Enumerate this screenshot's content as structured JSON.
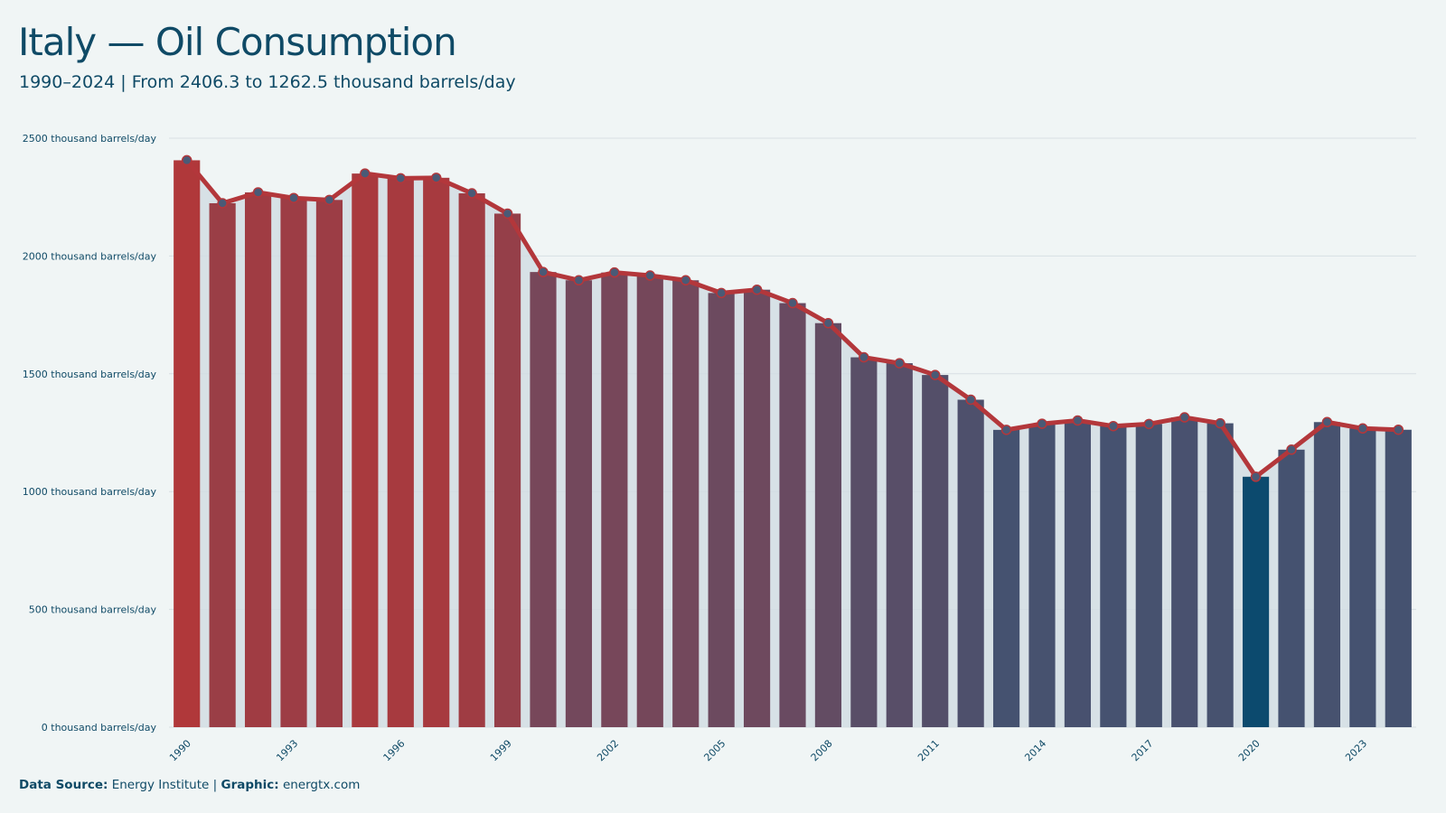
{
  "header": {
    "title": "Italy — Oil Consumption",
    "subtitle": "1990–2024 | From  2406.3  to 1262.5  thousand barrels/day"
  },
  "footer": {
    "source_label": "Data Source:",
    "source_value": "Energy Institute",
    "separator": "|",
    "graphic_label": "Graphic:",
    "graphic_value": "energtx.com"
  },
  "colors": {
    "background": "#f0f5f5",
    "bar_high": "#b0383a",
    "bar_mid": "#6b4a60",
    "bar_low": "#455270",
    "bar_min": "#0c4a6e",
    "line": "#b3373b",
    "marker_fill": "#4a5a76",
    "area": "#d2dde3",
    "grid": "#d7dfe3",
    "text": "#0f4a66"
  },
  "chart_data": {
    "type": "bar",
    "title": "Italy — Oil Consumption",
    "ylabel": "",
    "xlabel": "",
    "ylim": [
      0,
      2500
    ],
    "yticks": [
      0,
      500,
      1000,
      1500,
      2000,
      2500
    ],
    "ytick_unit": "thousand barrels/day",
    "xtick_years": [
      1990,
      1993,
      1996,
      1999,
      2002,
      2005,
      2008,
      2011,
      2014,
      2017,
      2020,
      2023
    ],
    "grid": true,
    "categories": [
      1990,
      1991,
      1992,
      1993,
      1994,
      1995,
      1996,
      1997,
      1998,
      1999,
      2000,
      2001,
      2002,
      2003,
      2004,
      2005,
      2006,
      2007,
      2008,
      2009,
      2010,
      2011,
      2012,
      2013,
      2014,
      2015,
      2016,
      2017,
      2018,
      2019,
      2020,
      2021,
      2022,
      2023,
      2024
    ],
    "values": [
      2406.3,
      2224,
      2270,
      2246,
      2238,
      2350,
      2330,
      2332,
      2266,
      2180,
      1932,
      1897,
      1930,
      1917,
      1897,
      1843,
      1857,
      1800,
      1715,
      1570,
      1545,
      1495,
      1390,
      1262,
      1288,
      1302,
      1278,
      1287,
      1315,
      1290,
      1063,
      1178,
      1295,
      1268,
      1262.5
    ]
  }
}
